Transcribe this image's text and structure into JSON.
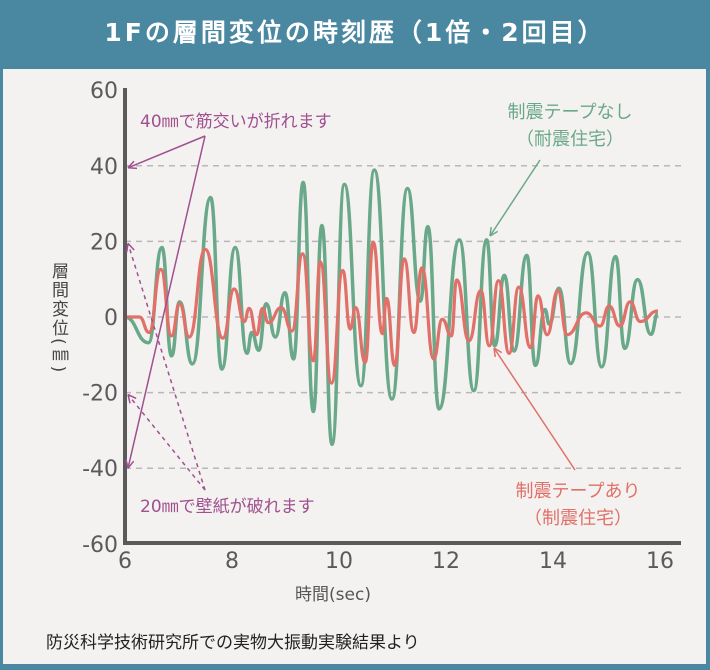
{
  "title": "1Fの層間変位の時刻歴（1倍・2回目）",
  "footer": "防災科学技術研究所での実物大振動実験結果より",
  "colors": {
    "header": "#4a87a0",
    "background": "#f4f2f0",
    "with_tape": "#e07068",
    "without_tape": "#6aa88a",
    "annotation": "#a0508f",
    "axis": "#5a5a5a",
    "grid": "#b8b8b8"
  },
  "chart_data": {
    "type": "line",
    "title": "1Fの層間変位の時刻歴（1倍・2回目）",
    "xlabel": "時間(sec)",
    "ylabel": "層間変位(㎜)",
    "xlim": [
      6,
      16.4
    ],
    "ylim": [
      -60,
      60
    ],
    "xticks": [
      "6",
      "8",
      "10",
      "12",
      "14",
      "16"
    ],
    "yticks": [
      "60",
      "40",
      "20",
      "0",
      "-20",
      "-40",
      "-60"
    ],
    "grid": "horizontal dashed",
    "series": [
      {
        "name": "制震テープなし（耐震住宅）",
        "label_line1": "制震テープなし",
        "label_line2": "（耐震住宅）",
        "color": "#6aa88a",
        "points": [
          [
            6.0,
            0
          ],
          [
            6.44,
            -6.8
          ],
          [
            6.69,
            18.4
          ],
          [
            6.87,
            -10.3
          ],
          [
            7.02,
            4.0
          ],
          [
            7.26,
            -12.4
          ],
          [
            7.6,
            31.6
          ],
          [
            7.81,
            -13.8
          ],
          [
            8.06,
            18.4
          ],
          [
            8.28,
            -9.6
          ],
          [
            8.37,
            -4.1
          ],
          [
            8.5,
            -8.8
          ],
          [
            8.64,
            3.5
          ],
          [
            8.81,
            -5.3
          ],
          [
            8.99,
            6.4
          ],
          [
            9.15,
            -11.1
          ],
          [
            9.33,
            35.6
          ],
          [
            9.52,
            -25.0
          ],
          [
            9.68,
            24.2
          ],
          [
            9.87,
            -33.7
          ],
          [
            10.1,
            35.1
          ],
          [
            10.41,
            -18.2
          ],
          [
            10.66,
            38.9
          ],
          [
            10.99,
            -21.7
          ],
          [
            11.28,
            34.0
          ],
          [
            11.52,
            4.2
          ],
          [
            11.66,
            23.9
          ],
          [
            11.87,
            -24.3
          ],
          [
            12.25,
            20.4
          ],
          [
            12.52,
            -19.5
          ],
          [
            12.76,
            20.4
          ],
          [
            12.91,
            -7.6
          ],
          [
            13.09,
            11.0
          ],
          [
            13.27,
            -9.0
          ],
          [
            13.51,
            16.3
          ],
          [
            13.67,
            -12.8
          ],
          [
            13.85,
            2.0
          ],
          [
            13.93,
            -1.9
          ],
          [
            14.11,
            7.6
          ],
          [
            14.33,
            -12.3
          ],
          [
            14.65,
            17.0
          ],
          [
            14.91,
            -13.2
          ],
          [
            15.17,
            16.0
          ],
          [
            15.34,
            -8.3
          ],
          [
            15.58,
            9.9
          ],
          [
            15.83,
            -4.6
          ],
          [
            15.96,
            0.9
          ]
        ]
      },
      {
        "name": "制震テープあり（制震住宅）",
        "label_line1": "制震テープあり",
        "label_line2": "（制震住宅）",
        "color": "#e07068",
        "points": [
          [
            6.0,
            0
          ],
          [
            6.27,
            0
          ],
          [
            6.45,
            -4.1
          ],
          [
            6.67,
            12.6
          ],
          [
            6.87,
            -5.0
          ],
          [
            7.02,
            3.5
          ],
          [
            7.2,
            -5.3
          ],
          [
            7.5,
            17.9
          ],
          [
            7.83,
            -5.6
          ],
          [
            8.04,
            7.4
          ],
          [
            8.23,
            -1.2
          ],
          [
            8.32,
            2.3
          ],
          [
            8.46,
            -4.7
          ],
          [
            8.57,
            2.3
          ],
          [
            8.68,
            -1.5
          ],
          [
            8.92,
            2.5
          ],
          [
            9.12,
            -3.7
          ],
          [
            9.32,
            16.7
          ],
          [
            9.52,
            -11.6
          ],
          [
            9.65,
            14.6
          ],
          [
            9.86,
            -17.5
          ],
          [
            10.07,
            12.3
          ],
          [
            10.21,
            -3.2
          ],
          [
            10.31,
            2.5
          ],
          [
            10.49,
            -12.0
          ],
          [
            10.64,
            19.8
          ],
          [
            10.81,
            -4.4
          ],
          [
            10.89,
            4.9
          ],
          [
            11.04,
            -12.8
          ],
          [
            11.22,
            15.4
          ],
          [
            11.4,
            -4.1
          ],
          [
            11.55,
            13.0
          ],
          [
            11.77,
            -11.1
          ],
          [
            11.93,
            -0.6
          ],
          [
            12.1,
            -5.0
          ],
          [
            12.2,
            9.8
          ],
          [
            12.43,
            -6.3
          ],
          [
            12.65,
            7.0
          ],
          [
            12.81,
            -7.6
          ],
          [
            12.98,
            9.6
          ],
          [
            13.18,
            -9.6
          ],
          [
            13.36,
            7.9
          ],
          [
            13.58,
            -8.1
          ],
          [
            13.72,
            5.6
          ],
          [
            13.89,
            -4.7
          ],
          [
            14.09,
            7.0
          ],
          [
            14.26,
            -4.7
          ],
          [
            14.62,
            1.1
          ],
          [
            14.88,
            -2.4
          ],
          [
            15.05,
            2.9
          ],
          [
            15.25,
            -2.4
          ],
          [
            15.44,
            4.0
          ],
          [
            15.63,
            -1.2
          ],
          [
            15.96,
            1.6
          ]
        ]
      }
    ],
    "annotations": [
      {
        "text": "40㎜で筋交いが折れます",
        "targets": [
          40,
          -40
        ],
        "style": "solid"
      },
      {
        "text": "20㎜で壁紙が破れます",
        "targets": [
          20,
          -20
        ],
        "style": "dashed"
      }
    ]
  }
}
